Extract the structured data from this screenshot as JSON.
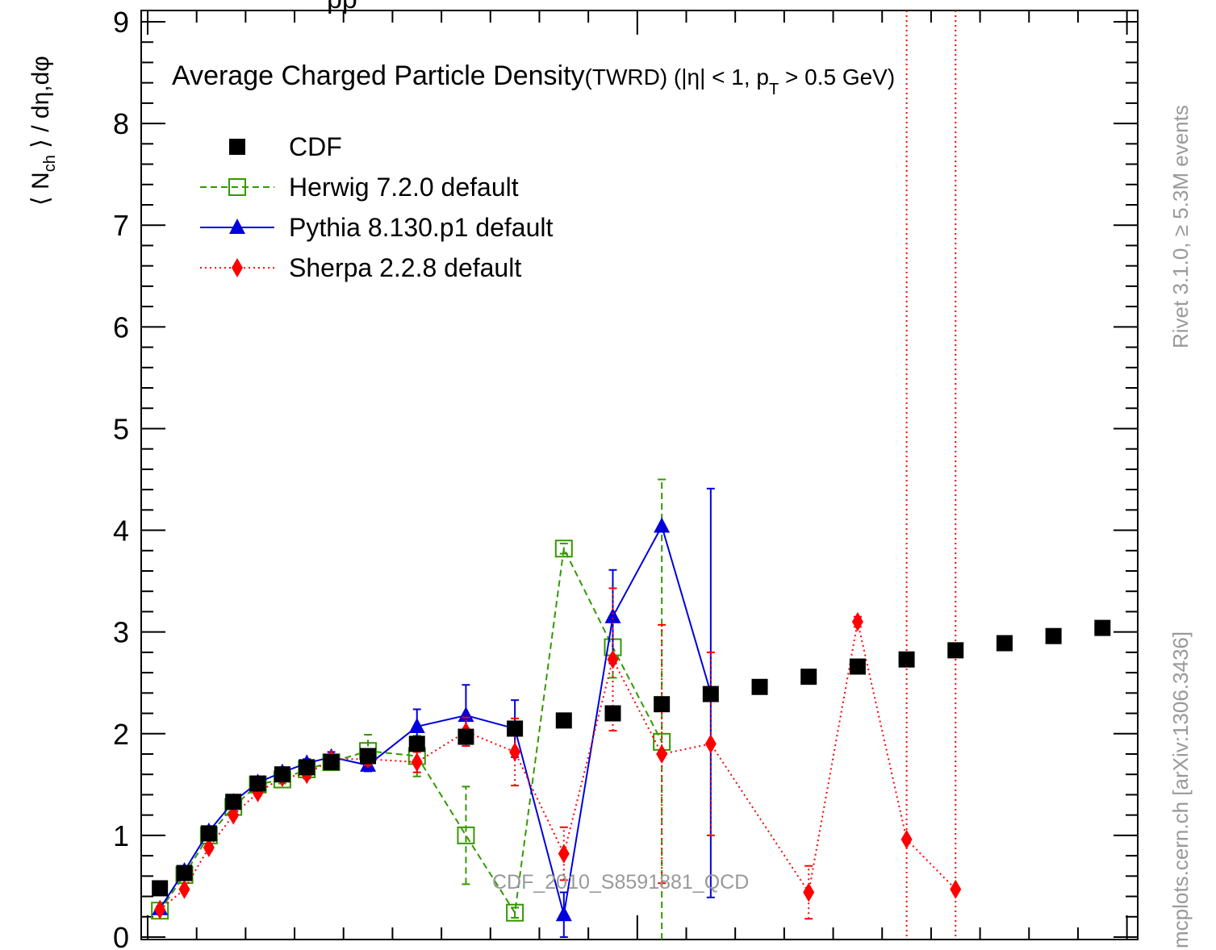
{
  "page_title_partial": "pp",
  "chart_data": {
    "type": "line",
    "title": "Average Charged Particle Density",
    "subtitle": "(TWRD) (|η| < 1, p",
    "subtitle_sub": "T",
    "subtitle_tail": " > 0.5 GeV)",
    "ylabel_parts": [
      "⟨ N",
      "ch",
      " ⟩ / dη,dφ"
    ],
    "watermark": "CDF_2010_S8591881_QCD",
    "side_top": "Rivet 3.1.0, ≥ 5.3M events",
    "side_bottom": "mcplots.cern.ch [arXiv:1306.3436]",
    "ylim": [
      0,
      9
    ],
    "xlim": [
      0,
      20
    ],
    "y_ticks": [
      "0",
      "1",
      "2",
      "3",
      "4",
      "5",
      "6",
      "7",
      "8",
      "9"
    ],
    "x_tick_labels": [],
    "grid": false,
    "legend_position": "top-left",
    "series": [
      {
        "name": "CDF",
        "style": "data",
        "color": "#000000",
        "x": [
          0.25,
          0.75,
          1.25,
          1.75,
          2.25,
          2.75,
          3.25,
          3.75,
          4.5,
          5.5,
          6.5,
          7.5,
          8.5,
          9.5,
          10.5,
          11.5,
          12.5,
          13.5,
          14.5,
          15.5,
          16.5,
          17.5,
          18.5,
          19.5
        ],
        "y": [
          0.48,
          0.63,
          1.02,
          1.33,
          1.51,
          1.6,
          1.67,
          1.72,
          1.78,
          1.9,
          1.97,
          2.05,
          2.13,
          2.2,
          2.29,
          2.39,
          2.46,
          2.56,
          2.66,
          2.73,
          2.82,
          2.89,
          2.96,
          3.04
        ]
      },
      {
        "name": "Herwig 7.2.0 default",
        "style": "dashed-open-square",
        "color": "#339900",
        "x": [
          0.25,
          0.75,
          1.25,
          1.75,
          2.25,
          2.75,
          3.25,
          3.75,
          4.5,
          5.5,
          6.5,
          7.5,
          8.5,
          9.5,
          10.5
        ],
        "y": [
          0.26,
          0.61,
          1.0,
          1.28,
          1.5,
          1.55,
          1.65,
          1.72,
          1.83,
          1.78,
          1.0,
          0.24,
          3.82,
          2.85,
          1.92
        ],
        "yerr": [
          0.03,
          0.03,
          0.04,
          0.04,
          0.04,
          0.04,
          0.05,
          0.05,
          0.16,
          0.2,
          0.48,
          0.05,
          0.05,
          0.3,
          2.58
        ]
      },
      {
        "name": "Pythia 8.130.p1 default",
        "style": "solid-triangle",
        "color": "#0000dd",
        "x": [
          0.25,
          0.75,
          1.25,
          1.75,
          2.25,
          2.75,
          3.25,
          3.75,
          4.5,
          5.5,
          6.5,
          7.5,
          8.5,
          9.5,
          10.5,
          11.5
        ],
        "y": [
          0.28,
          0.65,
          1.04,
          1.33,
          1.52,
          1.62,
          1.71,
          1.77,
          1.69,
          2.07,
          2.18,
          2.05,
          0.22,
          3.15,
          4.04,
          2.4
        ],
        "yerr": [
          0.02,
          0.02,
          0.03,
          0.03,
          0.03,
          0.03,
          0.04,
          0.05,
          0.06,
          0.17,
          0.3,
          0.28,
          0.22,
          0.46,
          0.0,
          2.01
        ]
      },
      {
        "name": "Sherpa 2.2.8 default",
        "style": "dotted-diamond",
        "color": "#ff0000",
        "x": [
          0.25,
          0.75,
          1.25,
          1.75,
          2.25,
          2.75,
          3.25,
          3.75,
          4.5,
          5.5,
          6.5,
          7.5,
          8.5,
          9.5,
          10.5,
          11.5,
          13.5,
          14.5,
          15.5,
          16.5
        ],
        "y": [
          0.27,
          0.47,
          0.88,
          1.2,
          1.42,
          1.57,
          1.6,
          1.75,
          1.75,
          1.72,
          2.02,
          1.82,
          0.82,
          2.73,
          1.8,
          1.9,
          0.44,
          3.1,
          0.96,
          0.47
        ],
        "yerr": [
          0.02,
          0.02,
          0.03,
          0.03,
          0.03,
          0.03,
          0.04,
          0.04,
          0.06,
          0.1,
          0.14,
          0.33,
          0.26,
          0.7,
          1.27,
          0.9,
          0.26,
          0.05,
          0.0,
          0.0
        ]
      }
    ]
  }
}
